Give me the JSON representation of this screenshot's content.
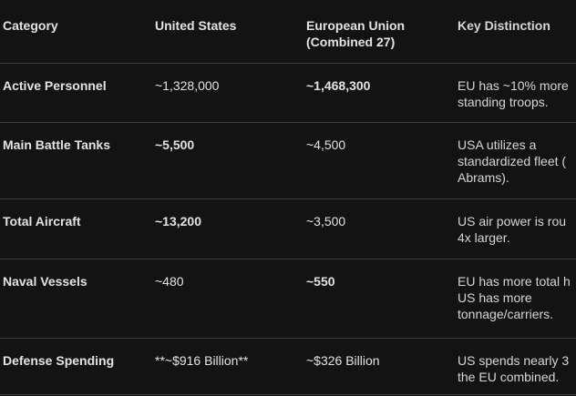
{
  "table": {
    "header": [
      "Category",
      "United States",
      "European Union (Combined 27)",
      "Key Distinction"
    ],
    "rows": [
      [
        "Active Personnel",
        "~1,328,000",
        "~1,468,300",
        [
          "EU has ~10% more",
          "standing troops."
        ]
      ],
      [
        "Main Battle Tanks",
        "~5,500",
        "~4,500",
        [
          "USA utilizes a",
          "standardized fleet (",
          "Abrams)."
        ]
      ],
      [
        "Total Aircraft",
        "~13,200",
        "~3,500",
        [
          "US air power is rou",
          "4x larger."
        ]
      ],
      [
        "Naval Vessels",
        "~480",
        "~550",
        [
          "EU has more total h",
          "US has more",
          "tonnage/carriers."
        ]
      ],
      [
        "Defense Spending",
        "**~$916 Billion**",
        "~$326 Billion",
        [
          "US spends nearly 3",
          "the EU combined."
        ]
      ]
    ]
  }
}
